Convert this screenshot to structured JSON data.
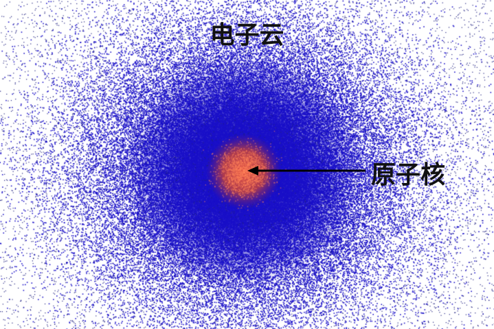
{
  "title": "电子云",
  "nucleus_label": "原子核",
  "colors": {
    "background": "#ffffff",
    "cloud": "#1a10c8",
    "cloud_dense": "#0a0590",
    "nucleus": "#e05030",
    "arrow": "#000000",
    "text": "#111111"
  }
}
